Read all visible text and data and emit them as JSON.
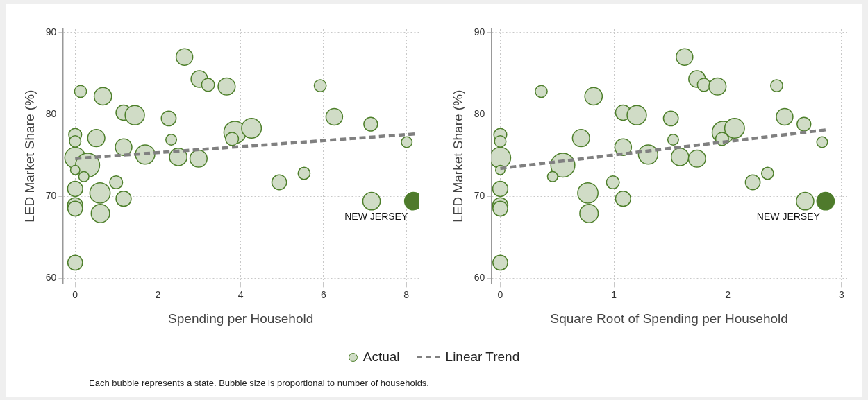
{
  "chart_data": [
    {
      "type": "bubble",
      "xlabel": "Spending per Household",
      "ylabel": "LED Market Share (%)",
      "xlim": [
        -0.3,
        8.3
      ],
      "xticks": [
        0,
        2,
        4,
        6,
        8
      ],
      "ylim": [
        59.4,
        90.4
      ],
      "yticks": [
        60,
        70,
        80,
        90
      ],
      "grid": true,
      "legend": "bottom",
      "marker": "circle",
      "annotations": [
        {
          "text": "NEW JERSEY",
          "x": 8.17,
          "y": 69.4
        },
        "Each bubble represents a state. Bubble size is proportional to number of households."
      ],
      "series": [
        {
          "name": "Actual",
          "color": "#d0dcc6",
          "x": [
            0,
            0.13,
            0.67,
            1.17,
            1.44,
            0,
            0,
            0.51,
            1.17,
            1.69,
            0,
            0.3,
            0,
            0.21,
            0.99,
            0,
            0.6,
            1.17,
            0,
            0,
            0.61,
            2.64,
            3.0,
            3.21,
            3.66,
            2.26,
            2.32,
            2.49,
            2.98,
            3.86,
            3.79,
            4.26,
            4.93,
            5.53,
            5.92,
            6.26,
            7.14,
            8.01,
            7.16
          ],
          "values": [
            61.9,
            82.8,
            82.2,
            80.2,
            79.9,
            77.5,
            76.7,
            77.1,
            76.0,
            75.1,
            74.7,
            73.8,
            73.2,
            72.4,
            71.7,
            70.9,
            70.4,
            69.7,
            68.9,
            68.5,
            67.9,
            87.0,
            84.3,
            83.6,
            83.4,
            79.5,
            76.9,
            74.8,
            74.6,
            77.8,
            77.0,
            78.3,
            71.7,
            72.8,
            83.5,
            79.7,
            78.8,
            76.6,
            69.4
          ],
          "sizes": [
            0.38,
            0.25,
            0.53,
            0.4,
            0.65,
            0.29,
            0.23,
            0.51,
            0.48,
            0.65,
            0.75,
            1,
            0.15,
            0.18,
            0.29,
            0.4,
            0.72,
            0.4,
            0.4,
            0.38,
            0.59,
            0.48,
            0.48,
            0.29,
            0.51,
            0.38,
            0.2,
            0.53,
            0.51,
            0.85,
            0.29,
            0.68,
            0.38,
            0.25,
            0.25,
            0.48,
            0.33,
            0.2,
            0.53
          ]
        },
        {
          "color": "#4f7a2c",
          "x": [
            8.17
          ],
          "values": [
            69.4
          ],
          "sizes": [
            0.53
          ]
        },
        {
          "type": "line",
          "name": "Linear Trend",
          "color": "#808080",
          "line_style": "dashed",
          "marker": "none",
          "x": [
            0,
            8.2
          ],
          "values": [
            74.6,
            77.6
          ]
        }
      ]
    },
    {
      "type": "bubble",
      "xlabel": "Square Root of Spending per Household",
      "ylabel": "LED Market Share (%)",
      "xlim": [
        -0.08,
        3.05
      ],
      "xticks": [
        0,
        1,
        2,
        3
      ],
      "ylim": [
        59.4,
        90.4
      ],
      "yticks": [
        60,
        70,
        80,
        90
      ],
      "grid": true,
      "marker": "circle",
      "annotations": [
        {
          "text": "NEW JERSEY",
          "x": 2.86,
          "y": 69.4
        }
      ],
      "series": [
        {
          "color": "#d0dcc6",
          "x": [
            0,
            0.36,
            0.82,
            1.08,
            1.2,
            0,
            0,
            0.71,
            1.08,
            1.3,
            0,
            0.55,
            0,
            0.46,
            0.99,
            0,
            0.77,
            1.08,
            0,
            0,
            0.78,
            1.62,
            1.73,
            1.79,
            1.91,
            1.5,
            1.52,
            1.58,
            1.73,
            1.96,
            1.95,
            2.06,
            2.22,
            2.35,
            2.43,
            2.5,
            2.67,
            2.83,
            2.68
          ],
          "values": [
            61.9,
            82.8,
            82.2,
            80.2,
            79.9,
            77.5,
            76.7,
            77.1,
            76.0,
            75.1,
            74.7,
            73.8,
            73.2,
            72.4,
            71.7,
            70.9,
            70.4,
            69.7,
            68.9,
            68.5,
            67.9,
            87.0,
            84.3,
            83.6,
            83.4,
            79.5,
            76.9,
            74.8,
            74.6,
            77.8,
            77.0,
            78.3,
            71.7,
            72.8,
            83.5,
            79.7,
            78.8,
            76.6,
            69.4
          ],
          "sizes": [
            0.38,
            0.25,
            0.53,
            0.4,
            0.65,
            0.29,
            0.23,
            0.51,
            0.48,
            0.65,
            0.75,
            1,
            0.15,
            0.18,
            0.29,
            0.4,
            0.72,
            0.4,
            0.4,
            0.38,
            0.59,
            0.48,
            0.48,
            0.29,
            0.51,
            0.38,
            0.2,
            0.53,
            0.51,
            0.85,
            0.29,
            0.68,
            0.38,
            0.25,
            0.25,
            0.48,
            0.33,
            0.2,
            0.53
          ]
        },
        {
          "color": "#4f7a2c",
          "x": [
            2.86
          ],
          "values": [
            69.4
          ],
          "sizes": [
            0.53
          ]
        },
        {
          "type": "line",
          "color": "#808080",
          "line_style": "dashed",
          "marker": "none",
          "x": [
            0,
            2.86
          ],
          "values": [
            73.4,
            78.1
          ]
        }
      ]
    }
  ]
}
